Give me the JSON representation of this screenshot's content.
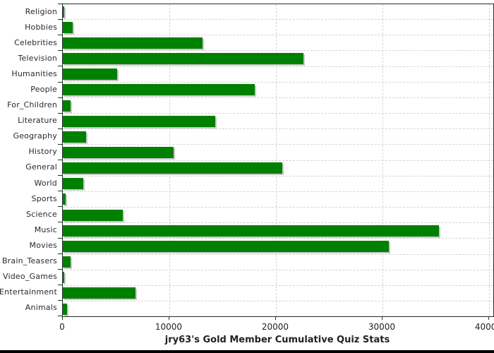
{
  "chart_data": {
    "type": "bar",
    "orientation": "horizontal",
    "title": "jry63's Gold Member Cumulative Quiz Stats",
    "categories": [
      "Religion",
      "Hobbies",
      "Celebrities",
      "Television",
      "Humanities",
      "People",
      "For_Children",
      "Literature",
      "Geography",
      "History",
      "General",
      "World",
      "Sports",
      "Science",
      "Music",
      "Movies",
      "Brain_Teasers",
      "Video_Games",
      "Entertainment",
      "Animals"
    ],
    "values": [
      150,
      900,
      13100,
      22600,
      5100,
      18000,
      700,
      14300,
      2200,
      10400,
      20600,
      1900,
      250,
      5600,
      35300,
      30600,
      750,
      150,
      6800,
      400
    ],
    "x_ticks": [
      0,
      10000,
      20000,
      30000,
      40000
    ],
    "x_tick_labels": [
      "0",
      "10000",
      "20000",
      "30000",
      "40000"
    ],
    "xlim": [
      0,
      40400
    ],
    "grid": "dashed",
    "legend": "none",
    "colors": {
      "bar": "#008000",
      "bar_shadow": "#c9c9c9",
      "grid_line": "#d4d4d4",
      "axis_line": "#2b2b2b",
      "text": "#222222",
      "background": "#ffffff",
      "bottom_strip": "#000000"
    }
  }
}
